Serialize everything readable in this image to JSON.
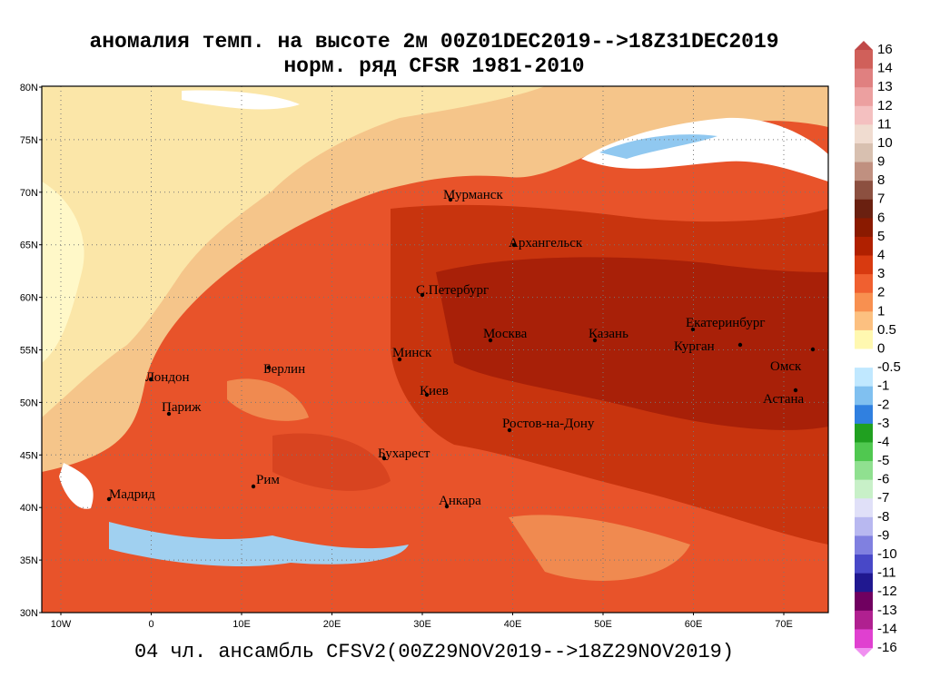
{
  "title": [
    "аномалия темп. на высоте 2м 00Z01DEC2019-->18Z31DEC2019",
    "норм. ряд CFSR 1981-2010"
  ],
  "footer": "04 чл. ансамбль CFSV2(00Z29NOV2019-->18Z29NOV2019)",
  "map": {
    "lat_ticks": [
      "80N",
      "75N",
      "70N",
      "65N",
      "60N",
      "55N",
      "50N",
      "45N",
      "40N",
      "35N",
      "30N"
    ],
    "lon_ticks": [
      "10W",
      "0",
      "10E",
      "20E",
      "30E",
      "40E",
      "50E",
      "60E",
      "70E"
    ],
    "cities": [
      "Мурманск",
      "Архангельск",
      "С.Петербург",
      "Москва",
      "Казань",
      "Екатеринбург",
      "Курган",
      "Омск",
      "Астана",
      "Минск",
      "Киев",
      "Берлин",
      "Лондон",
      "Париж",
      "Ростов-на-Дону",
      "Бухарест",
      "Рим",
      "Мадрид",
      "Анкара"
    ]
  },
  "colorbar": {
    "levels": [
      16,
      14,
      13,
      12,
      11,
      10,
      9,
      8,
      7,
      6,
      5,
      4,
      3,
      2,
      1,
      0.5,
      0,
      -0.5,
      -1,
      -2,
      -3,
      -4,
      -5,
      -6,
      -7,
      -8,
      -9,
      -10,
      -11,
      -12,
      -13,
      -14,
      -16
    ],
    "colors": [
      "#c04848",
      "#d0605a",
      "#e08080",
      "#eca0a0",
      "#f4c0c0",
      "#f0dcd0",
      "#d8c0b0",
      "#c09080",
      "#8c5040",
      "#6a2010",
      "#8a1a00",
      "#b02000",
      "#d83a10",
      "#f06030",
      "#f89050",
      "#fcc080",
      "#fff8b0",
      "#ffffff",
      "#c0e8ff",
      "#80c0f0",
      "#3080e0",
      "#20a020",
      "#50c850",
      "#90e090",
      "#c8f0c8",
      "#e0e0f8",
      "#b8b8f0",
      "#8080e0",
      "#4848c8",
      "#201890",
      "#700060",
      "#b02090",
      "#e040d0",
      "#f090f0"
    ]
  }
}
